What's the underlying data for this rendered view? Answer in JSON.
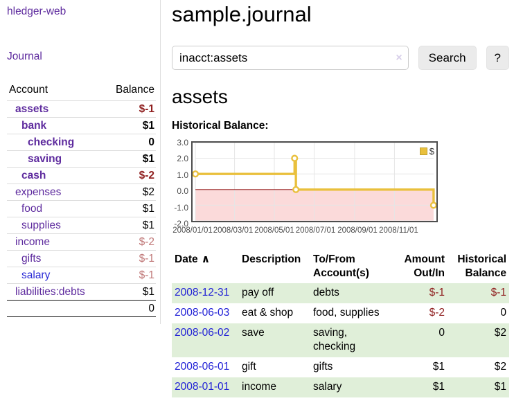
{
  "sidebar": {
    "app_title": "hledger-web",
    "journal_link": "Journal",
    "header": {
      "account": "Account",
      "balance": "Balance"
    },
    "accounts": [
      {
        "name": "assets",
        "balance": "$-1"
      },
      {
        "name": "bank",
        "balance": "$1"
      },
      {
        "name": "checking",
        "balance": "0"
      },
      {
        "name": "saving",
        "balance": "$1"
      },
      {
        "name": "cash",
        "balance": "$-2"
      },
      {
        "name": "expenses",
        "balance": "$2"
      },
      {
        "name": "food",
        "balance": "$1"
      },
      {
        "name": "supplies",
        "balance": "$1"
      },
      {
        "name": "income",
        "balance": "$-2"
      },
      {
        "name": "gifts",
        "balance": "$-1"
      },
      {
        "name": "salary",
        "balance": "$-1"
      },
      {
        "name": "liabilities:debts",
        "balance": "$1"
      }
    ],
    "total": "0"
  },
  "main": {
    "title": "sample.journal",
    "search": {
      "value": "inacct:assets",
      "clear_icon": "×",
      "search_button": "Search",
      "help_button": "?"
    },
    "heading": "assets",
    "chart_label": "Historical Balance:"
  },
  "chart_data": {
    "type": "line",
    "step": true,
    "title": "Historical Balance:",
    "legend_position": "top-right",
    "xrange": [
      "2008-01-01",
      "2008-12-31"
    ],
    "ylim": [
      -2,
      3
    ],
    "yticks": [
      3,
      2,
      1,
      0,
      -1,
      -2
    ],
    "xticks": [
      "2008/01/01",
      "2008/03/01",
      "2008/05/01",
      "2008/07/01",
      "2008/09/01",
      "2008/11/01"
    ],
    "series": [
      {
        "name": "$",
        "points": [
          [
            "2008-01-01",
            1
          ],
          [
            "2008-06-01",
            2
          ],
          [
            "2008-06-03",
            0
          ],
          [
            "2008-12-31",
            -1
          ]
        ]
      }
    ],
    "grid": true,
    "colors": {
      "line": "#e9c03d",
      "marker_fill": "#ffffff",
      "grid": "#e5e5e5",
      "zero_line": "#8b0000",
      "negative_region": "#fbdada",
      "border": "#4d4d4d"
    }
  },
  "register": {
    "headers": {
      "date": "Date",
      "sort_icon": "∧",
      "description": "Description",
      "accounts": "To/From Account(s)",
      "amount": "Amount Out/In",
      "balance": "Historical Balance"
    },
    "rows": [
      {
        "date": "2008-12-31",
        "description": "pay off",
        "accounts": "debts",
        "amount": "$-1",
        "balance": "$-1"
      },
      {
        "date": "2008-06-03",
        "description": "eat & shop",
        "accounts": "food, supplies",
        "amount": "$-2",
        "balance": "0"
      },
      {
        "date": "2008-06-02",
        "description": "save",
        "accounts": "saving, checking",
        "amount": "0",
        "balance": "$2"
      },
      {
        "date": "2008-06-01",
        "description": "gift",
        "accounts": "gifts",
        "amount": "$1",
        "balance": "$2"
      },
      {
        "date": "2008-01-01",
        "description": "income",
        "accounts": "salary",
        "amount": "$1",
        "balance": "$1"
      }
    ]
  },
  "colors": {
    "accent_purple": "#5e2b9e",
    "link_blue": "#2a2ad6",
    "negative": "#8f1f1f",
    "negative_faded": "#c07878",
    "row_green": "#e0efd9"
  }
}
